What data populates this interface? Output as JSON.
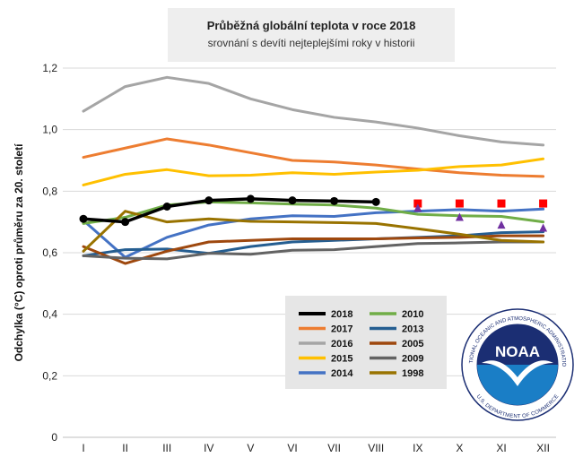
{
  "chart_data": {
    "type": "line",
    "title": "Průběžná globální teplota v roce 2018",
    "subtitle": "srovnání s devíti nejteplejšími roky v historii",
    "xlabel": "",
    "ylabel": "Odchylka (°C) oproti průměru za 20. století",
    "ylim": [
      0,
      1.2
    ],
    "yticks": [
      "0",
      "0,2",
      "0,4",
      "0,6",
      "0,8",
      "1,0",
      "1,2"
    ],
    "categories": [
      "I",
      "II",
      "III",
      "IV",
      "V",
      "VI",
      "VII",
      "VIII",
      "IX",
      "X",
      "XI",
      "XII"
    ],
    "series": [
      {
        "name": "2018",
        "color": "#000000",
        "values": [
          0.71,
          0.7,
          0.75,
          0.77,
          0.775,
          0.77,
          0.768,
          0.765,
          null,
          null,
          null,
          null
        ]
      },
      {
        "name": "2017",
        "color": "#ed7d31",
        "values": [
          0.91,
          0.94,
          0.97,
          0.95,
          0.925,
          0.9,
          0.895,
          0.885,
          0.872,
          0.86,
          0.852,
          0.848
        ]
      },
      {
        "name": "2016",
        "color": "#a5a5a5",
        "values": [
          1.06,
          1.14,
          1.17,
          1.15,
          1.1,
          1.065,
          1.04,
          1.025,
          1.005,
          0.98,
          0.96,
          0.95
        ]
      },
      {
        "name": "2015",
        "color": "#ffc000",
        "values": [
          0.82,
          0.855,
          0.87,
          0.85,
          0.852,
          0.86,
          0.855,
          0.862,
          0.868,
          0.88,
          0.885,
          0.905
        ]
      },
      {
        "name": "2014",
        "color": "#4472c4",
        "values": [
          0.705,
          0.585,
          0.65,
          0.69,
          0.71,
          0.72,
          0.718,
          0.73,
          0.735,
          0.74,
          0.735,
          0.742
        ]
      },
      {
        "name": "2010",
        "color": "#70ad47",
        "values": [
          0.695,
          0.715,
          0.755,
          0.765,
          0.762,
          0.758,
          0.755,
          0.745,
          0.725,
          0.72,
          0.718,
          0.7
        ]
      },
      {
        "name": "2013",
        "color": "#255e91",
        "values": [
          0.59,
          0.61,
          0.612,
          0.598,
          0.62,
          0.635,
          0.64,
          0.645,
          0.65,
          0.655,
          0.665,
          0.668
        ]
      },
      {
        "name": "2005",
        "color": "#9e480e",
        "values": [
          0.62,
          0.565,
          0.605,
          0.635,
          0.64,
          0.645,
          0.645,
          0.645,
          0.648,
          0.65,
          0.655,
          0.655
        ]
      },
      {
        "name": "2009",
        "color": "#636363",
        "values": [
          0.59,
          0.582,
          0.58,
          0.598,
          0.595,
          0.608,
          0.61,
          0.62,
          0.63,
          0.632,
          0.635,
          0.635
        ]
      },
      {
        "name": "1998",
        "color": "#997300",
        "values": [
          0.605,
          0.735,
          0.7,
          0.71,
          0.702,
          0.7,
          0.698,
          0.695,
          0.678,
          0.66,
          0.64,
          0.635
        ]
      }
    ],
    "projection_markers": [
      {
        "name": "2018 projection high",
        "shape": "square",
        "color": "#ff0000",
        "values": [
          null,
          null,
          null,
          null,
          null,
          null,
          null,
          null,
          0.76,
          0.76,
          0.76,
          0.76
        ]
      },
      {
        "name": "2018 projection low",
        "shape": "triangle",
        "color": "#7030a0",
        "values": [
          null,
          null,
          null,
          null,
          null,
          null,
          null,
          null,
          0.745,
          0.715,
          0.69,
          0.68
        ]
      }
    ],
    "legend_position": "center-bottom",
    "grid": "horizontal"
  },
  "logo": {
    "name": "NOAA",
    "outer_text_top": "NATIONAL OCEANIC AND ATMOSPHERIC ADMINISTRATION",
    "outer_text_bottom": "U.S. DEPARTMENT OF COMMERCE",
    "colors": {
      "blue": "#1a7ec6",
      "navy": "#1b2e73"
    }
  }
}
